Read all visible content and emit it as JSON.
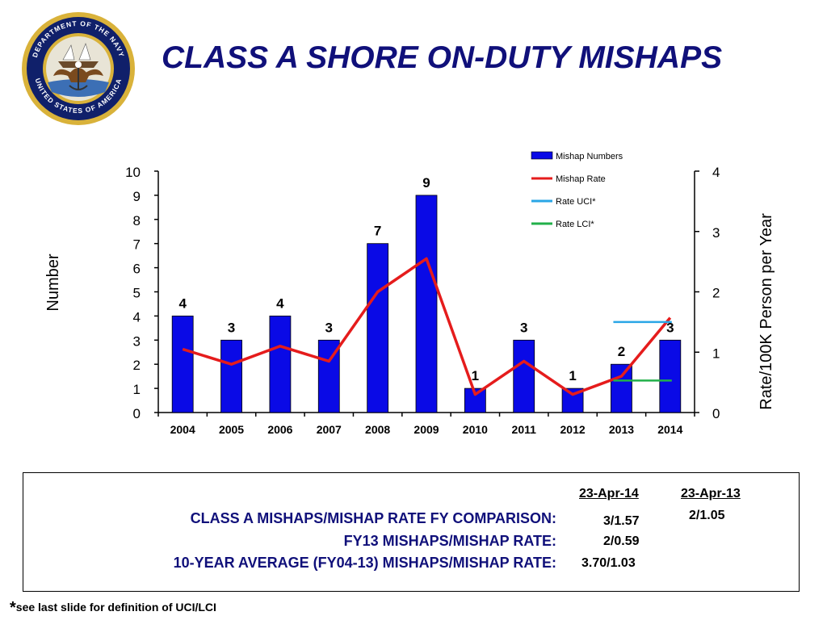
{
  "header": {
    "title": "CLASS A SHORE ON-DUTY MISHAPS",
    "seal_text": "DEPARTMENT OF THE NAVY • UNITED STATES OF AMERICA"
  },
  "chart_data": {
    "type": "bar",
    "categories": [
      "2004",
      "2005",
      "2006",
      "2007",
      "2008",
      "2009",
      "2010",
      "2011",
      "2012",
      "2013",
      "2014"
    ],
    "series": [
      {
        "name": "Mishap Numbers",
        "type": "bar",
        "axis": "left",
        "color": "#0a0ae6",
        "values": [
          4,
          3,
          4,
          3,
          7,
          9,
          1,
          3,
          1,
          2,
          3
        ]
      },
      {
        "name": "Mishap Rate",
        "type": "line",
        "axis": "right",
        "color": "#e51c1c",
        "values": [
          1.05,
          0.8,
          1.1,
          0.85,
          2.0,
          2.55,
          0.3,
          0.85,
          0.3,
          0.6,
          1.57
        ]
      },
      {
        "name": "Rate UCI*",
        "type": "line",
        "axis": "right",
        "color": "#2aa6e6",
        "x": [
          "2013",
          "2014"
        ],
        "values": [
          1.5,
          1.5
        ]
      },
      {
        "name": "Rate LCI*",
        "type": "line",
        "axis": "right",
        "color": "#22b04a",
        "x": [
          "2013",
          "2014"
        ],
        "values": [
          0.53,
          0.53
        ]
      }
    ],
    "data_labels": [
      "4",
      "3",
      "4",
      "3",
      "7",
      "9",
      "1",
      "3",
      "1",
      "2",
      "3"
    ],
    "ylabel": "Number",
    "y2label": "Rate/100K Person per Year",
    "ylim": [
      0,
      10
    ],
    "y2lim": [
      0,
      4
    ],
    "yticks": [
      "0",
      "1",
      "2",
      "3",
      "4",
      "5",
      "6",
      "7",
      "8",
      "9",
      "10"
    ],
    "y2ticks": [
      "0",
      "1",
      "2",
      "3",
      "4"
    ],
    "legend_position": "top-right",
    "grid": false
  },
  "summary": {
    "col1_header": "23-Apr-14",
    "col2_header": "23-Apr-13",
    "rows": [
      {
        "label": "CLASS A MISHAPS/MISHAP RATE FY COMPARISON:",
        "v1": "3/1.57",
        "v2": "2/1.05"
      },
      {
        "label": "FY13 MISHAPS/MISHAP RATE:",
        "v1": "2/0.59"
      },
      {
        "label": "10-YEAR AVERAGE (FY04-13) MISHAPS/MISHAP RATE:",
        "v1": "3.70/1.03"
      }
    ]
  },
  "footnote": {
    "star": "*",
    "text": "see last slide for definition of UCI/LCI"
  }
}
